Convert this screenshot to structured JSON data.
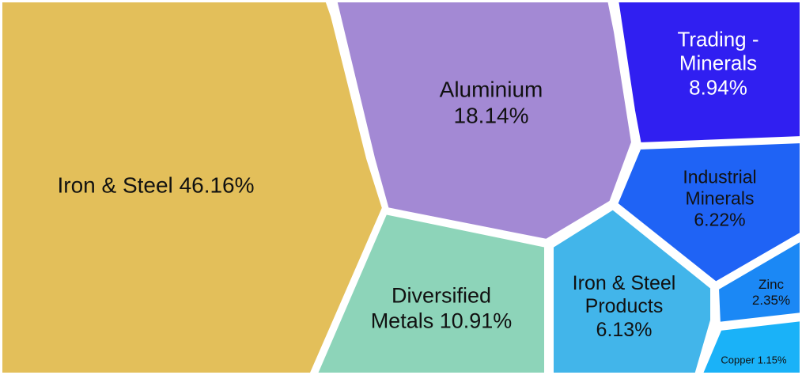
{
  "chart_data": {
    "type": "voronoi-treemap",
    "categories": [
      "Iron & Steel",
      "Aluminium",
      "Trading - Minerals",
      "Industrial Minerals",
      "Diversified Metals",
      "Iron & Steel Products",
      "Zinc",
      "Copper"
    ],
    "values": [
      46.16,
      18.14,
      8.94,
      6.22,
      10.91,
      6.13,
      2.35,
      1.15
    ],
    "value_labels": [
      "46.16%",
      "18.14%",
      "8.94%",
      "6.22%",
      "10.91%",
      "6.13%",
      "2.35%",
      "1.15%"
    ],
    "colors": [
      "#e3bf5a",
      "#a389d4",
      "#301ff1",
      "#1f63f5",
      "#8dd4b9",
      "#42b5ea",
      "#1b88f5",
      "#1ab2f8"
    ]
  }
}
